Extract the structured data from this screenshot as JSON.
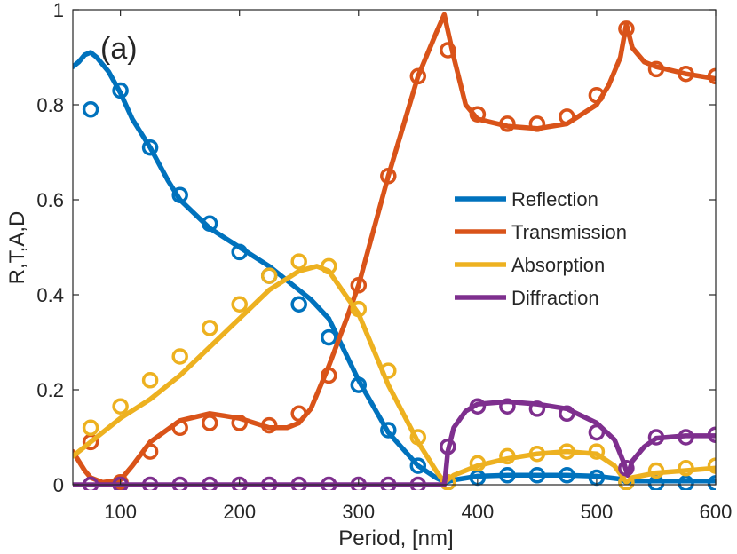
{
  "chart_data": {
    "type": "line",
    "panel_label": "(a)",
    "xlabel": "Period, [nm]",
    "ylabel": "R,T,A,D",
    "xlim": [
      60,
      600
    ],
    "ylim": [
      0,
      1
    ],
    "xticks": [
      100,
      200,
      300,
      400,
      500,
      600
    ],
    "yticks": [
      0,
      0.2,
      0.4,
      0.6,
      0.8,
      1
    ],
    "ytick_labels": [
      "0",
      "0.2",
      "0.4",
      "0.6",
      "0.8",
      "1"
    ],
    "legend_position": "right-middle",
    "series": [
      {
        "name": "Reflection",
        "color": "#0072BD",
        "line": {
          "x": [
            60,
            65,
            70,
            75,
            80,
            90,
            100,
            110,
            125,
            140,
            150,
            175,
            200,
            225,
            250,
            260,
            275,
            300,
            325,
            350,
            365,
            373,
            380,
            400,
            425,
            450,
            475,
            500,
            520,
            525,
            530,
            550,
            575,
            600
          ],
          "y": [
            0.88,
            0.89,
            0.905,
            0.91,
            0.9,
            0.87,
            0.825,
            0.77,
            0.71,
            0.64,
            0.6,
            0.54,
            0.5,
            0.46,
            0.41,
            0.39,
            0.35,
            0.22,
            0.11,
            0.04,
            0.015,
            0.005,
            0.01,
            0.018,
            0.02,
            0.02,
            0.02,
            0.018,
            0.012,
            0.005,
            0.008,
            0.008,
            0.008,
            0.008
          ]
        },
        "markers": {
          "x": [
            75,
            100,
            125,
            150,
            175,
            200,
            225,
            250,
            275,
            300,
            325,
            350,
            375,
            400,
            425,
            450,
            475,
            500,
            525,
            550,
            575,
            600
          ],
          "y": [
            0.79,
            0.83,
            0.71,
            0.61,
            0.55,
            0.49,
            0.44,
            0.38,
            0.31,
            0.21,
            0.115,
            0.04,
            0.005,
            0.015,
            0.02,
            0.02,
            0.02,
            0.015,
            0.005,
            0.003,
            0.003,
            0.003
          ]
        }
      },
      {
        "name": "Transmission",
        "color": "#D95319",
        "line": {
          "x": [
            60,
            65,
            70,
            75,
            85,
            100,
            110,
            125,
            150,
            175,
            200,
            225,
            240,
            250,
            260,
            275,
            290,
            300,
            325,
            350,
            365,
            372,
            380,
            390,
            400,
            425,
            450,
            475,
            500,
            510,
            520,
            525,
            530,
            540,
            550,
            575,
            600
          ],
          "y": [
            0.07,
            0.05,
            0.03,
            0.015,
            0.005,
            0.01,
            0.04,
            0.09,
            0.135,
            0.15,
            0.14,
            0.12,
            0.12,
            0.13,
            0.16,
            0.25,
            0.35,
            0.42,
            0.65,
            0.86,
            0.95,
            0.99,
            0.9,
            0.8,
            0.77,
            0.755,
            0.75,
            0.76,
            0.8,
            0.84,
            0.9,
            0.97,
            0.92,
            0.89,
            0.88,
            0.865,
            0.855
          ]
        },
        "markers": {
          "x": [
            75,
            100,
            125,
            150,
            175,
            200,
            225,
            250,
            275,
            300,
            325,
            350,
            375,
            400,
            425,
            450,
            475,
            500,
            525,
            550,
            575,
            600
          ],
          "y": [
            0.09,
            0.005,
            0.07,
            0.12,
            0.13,
            0.13,
            0.125,
            0.15,
            0.23,
            0.42,
            0.65,
            0.86,
            0.915,
            0.78,
            0.76,
            0.76,
            0.775,
            0.82,
            0.96,
            0.875,
            0.865,
            0.86
          ]
        }
      },
      {
        "name": "Absorption",
        "color": "#EDB120",
        "line": {
          "x": [
            60,
            75,
            100,
            125,
            150,
            175,
            200,
            225,
            250,
            265,
            275,
            300,
            325,
            350,
            365,
            372,
            380,
            400,
            425,
            450,
            475,
            500,
            515,
            525,
            530,
            550,
            575,
            600
          ],
          "y": [
            0.06,
            0.09,
            0.14,
            0.18,
            0.23,
            0.29,
            0.35,
            0.41,
            0.45,
            0.46,
            0.45,
            0.36,
            0.21,
            0.09,
            0.03,
            0.005,
            0.02,
            0.04,
            0.055,
            0.065,
            0.07,
            0.065,
            0.04,
            0.005,
            0.015,
            0.025,
            0.03,
            0.035
          ]
        },
        "markers": {
          "x": [
            75,
            100,
            125,
            150,
            175,
            200,
            225,
            250,
            275,
            300,
            325,
            350,
            375,
            400,
            425,
            450,
            475,
            500,
            525,
            550,
            575,
            600
          ],
          "y": [
            0.12,
            0.165,
            0.22,
            0.27,
            0.33,
            0.38,
            0.44,
            0.47,
            0.46,
            0.37,
            0.24,
            0.1,
            0.005,
            0.045,
            0.06,
            0.065,
            0.07,
            0.07,
            0.005,
            0.03,
            0.035,
            0.04
          ]
        }
      },
      {
        "name": "Diffraction",
        "color": "#7E2F8E",
        "line": {
          "x": [
            60,
            100,
            200,
            300,
            372,
            373,
            375,
            380,
            390,
            400,
            425,
            450,
            475,
            500,
            515,
            523,
            526,
            530,
            540,
            550,
            575,
            600
          ],
          "y": [
            0,
            0,
            0,
            0,
            0,
            0.02,
            0.07,
            0.12,
            0.155,
            0.17,
            0.175,
            0.17,
            0.16,
            0.13,
            0.095,
            0.045,
            0.02,
            0.05,
            0.08,
            0.098,
            0.103,
            0.103
          ]
        },
        "markers": {
          "x": [
            75,
            100,
            125,
            150,
            175,
            200,
            225,
            250,
            275,
            300,
            325,
            350,
            375,
            400,
            425,
            450,
            475,
            500,
            525,
            550,
            575,
            600
          ],
          "y": [
            0,
            0,
            0,
            0,
            0,
            0,
            0,
            0,
            0,
            0,
            0,
            0,
            0.08,
            0.165,
            0.165,
            0.16,
            0.15,
            0.11,
            0.035,
            0.1,
            0.1,
            0.105
          ]
        }
      }
    ]
  }
}
